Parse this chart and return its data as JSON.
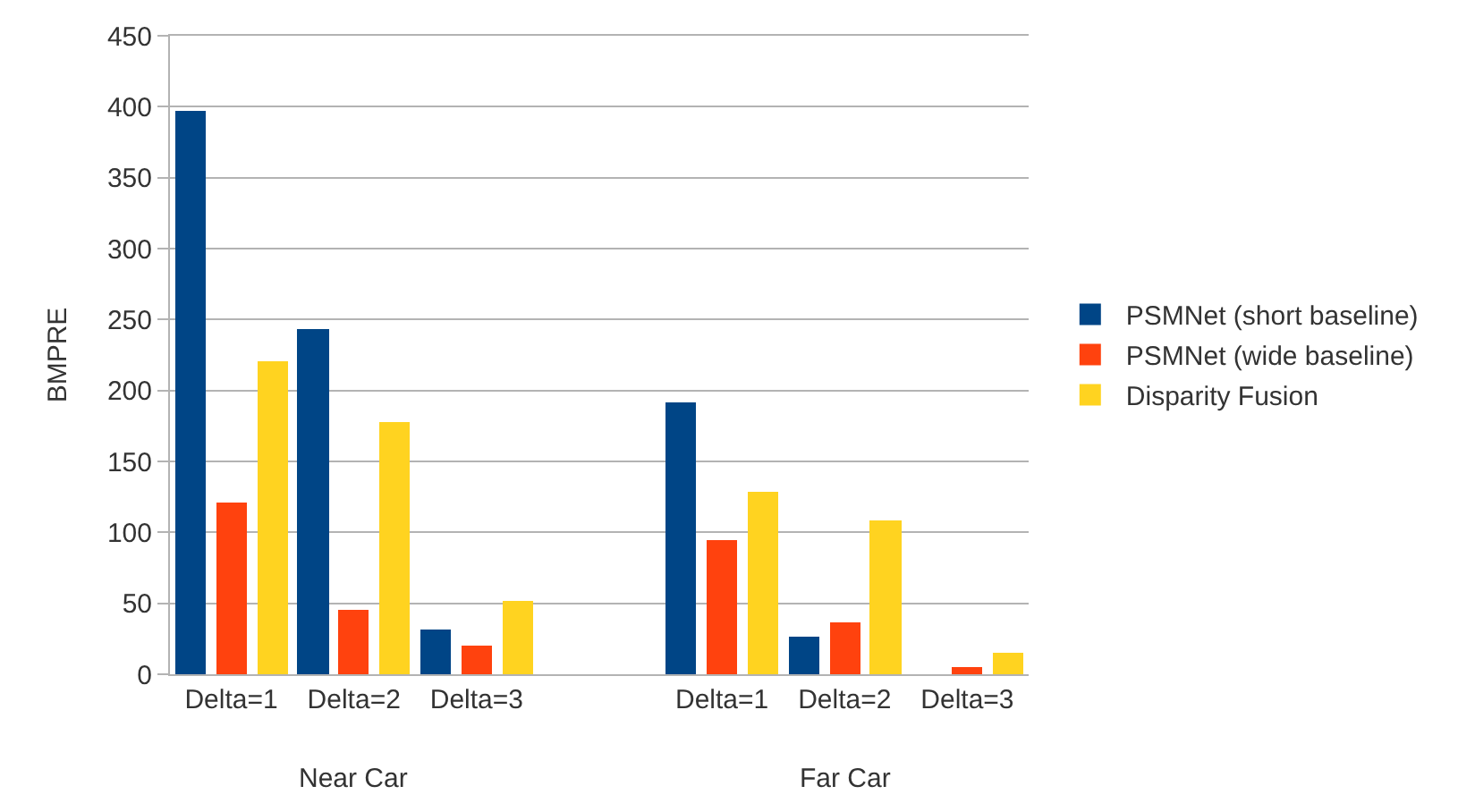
{
  "chart_data": {
    "type": "bar",
    "ylabel": "BMPRE",
    "categories": [
      "Delta=1",
      "Delta=2",
      "Delta=3",
      null,
      "Delta=1",
      "Delta=2",
      "Delta=3"
    ],
    "series": [
      {
        "name": "PSMNet (short baseline)",
        "color": "#004586",
        "values": [
          397,
          243,
          32,
          null,
          191,
          26,
          0
        ]
      },
      {
        "name": "PSMNet (wide baseline)",
        "color": "#ff420e",
        "values": [
          121,
          45,
          20,
          null,
          94,
          36,
          5
        ]
      },
      {
        "name": "Disparity Fusion",
        "color": "#ffd320",
        "values": [
          221,
          178,
          52,
          null,
          128,
          108,
          15
        ]
      }
    ],
    "annotations": [
      "Near Car",
      "Far Car"
    ],
    "ylim": [
      0,
      450
    ],
    "yticks": [
      0,
      50,
      100,
      150,
      200,
      250,
      300,
      350,
      400,
      450
    ],
    "grid": "y",
    "legend": "right"
  }
}
